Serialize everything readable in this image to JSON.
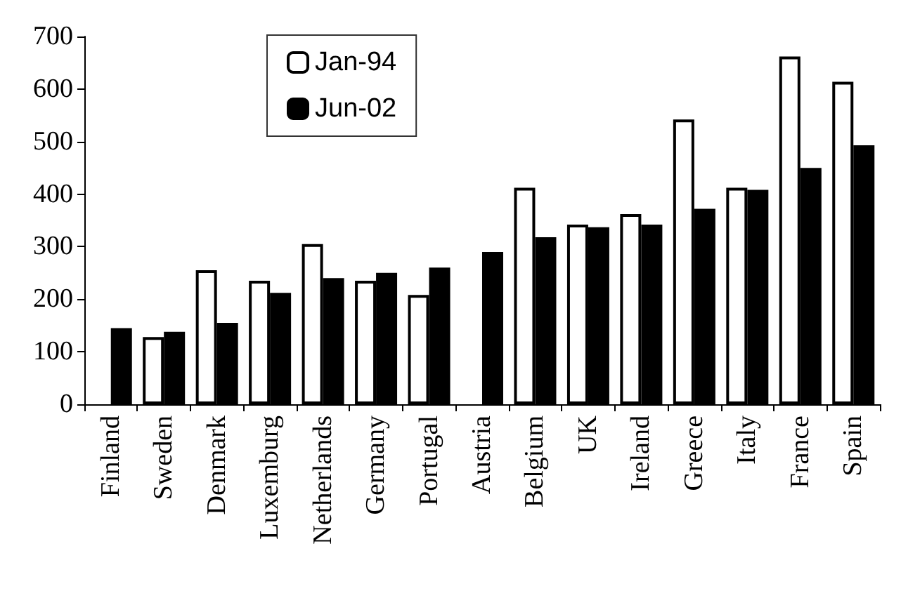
{
  "chart_data": {
    "type": "bar",
    "categories": [
      "Finland",
      "Sweden",
      "Denmark",
      "Luxemburg",
      "Netherlands",
      "Germany",
      "Portugal",
      "Austria",
      "Belgium",
      "UK",
      "Ireland",
      "Greece",
      "Italy",
      "France",
      "Spain"
    ],
    "series": [
      {
        "name": "Jan-94",
        "color": "#ffffff",
        "values": [
          null,
          128,
          255,
          235,
          305,
          235,
          208,
          null,
          412,
          342,
          362,
          542,
          412,
          662,
          614
        ]
      },
      {
        "name": "Jun-02",
        "color": "#000000",
        "values": [
          145,
          138,
          155,
          212,
          240,
          250,
          260,
          290,
          318,
          337,
          342,
          372,
          408,
          450,
          493
        ]
      }
    ],
    "ylim": [
      0,
      700
    ],
    "yticks": [
      0,
      100,
      200,
      300,
      400,
      500,
      600,
      700
    ],
    "grid": false,
    "legend": "top left"
  }
}
